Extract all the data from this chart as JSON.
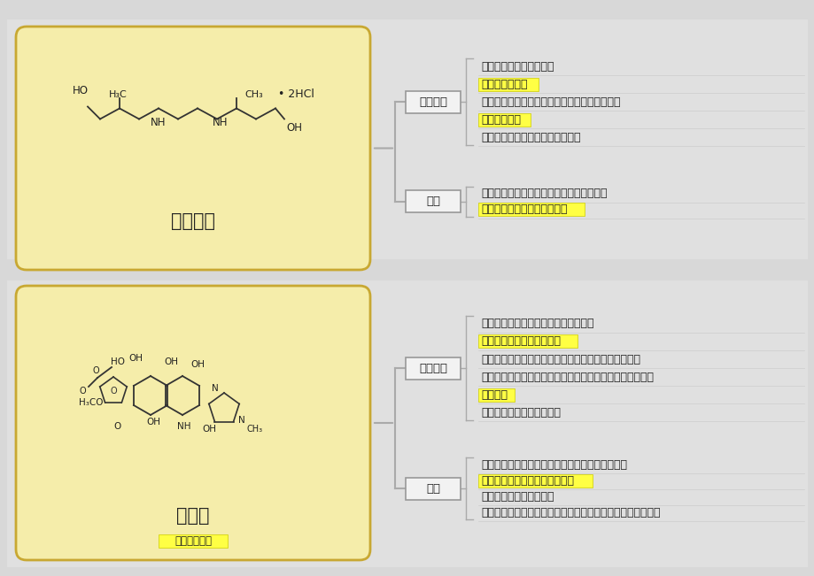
{
  "bg_color": "#d8d8d8",
  "panel_bg": "#f5edaa",
  "panel_border": "#c8a832",
  "box_bg": "#f2f2f2",
  "box_border": "#999999",
  "highlight_bg": "#ffff44",
  "highlight_border": "#cccc00",
  "line_color": "#aaaaaa",
  "text_color": "#222222",
  "white_bg": "#f8f8f8",
  "title1": "乙胺丁醇",
  "title2": "利福平",
  "subtitle2": "甲哌利福霉素",
  "label_ab": "抗菌作用",
  "label_use": "用途",
  "s1_ab_items": [
    {
      "text": "选择性抑制结核分枝杆菌",
      "highlight": false
    },
    {
      "text": "对其它细菌无效",
      "highlight": true
    },
    {
      "text": "对异烟肼或链霉素已产生耐药性的结核分枝杆菌",
      "highlight": false
    },
    {
      "text": "本药仍然有效",
      "highlight": true
    },
    {
      "text": "与其它抗结核药物间无交叉耐药性",
      "highlight": false
    }
  ],
  "s1_use_items": [
    {
      "text": "与异烟肼或利福平合用于各种结核病的治疗",
      "highlight": false
    },
    {
      "text": "增强疗效、延缓耐药性的产生",
      "highlight": true
    }
  ],
  "s2_ab_items": [
    {
      "text": "对结核分枝杆菌、麻风分枝杆菌作用强",
      "highlight": false
    },
    {
      "text": "对前者的作用与异烟肼相当",
      "highlight": true
    },
    {
      "text": "静止期、繁殖期、细胞内的结核分支杆菌均有杀菌作用",
      "highlight": false
    },
    {
      "text": "同时对多种格兰阳性、阴性菌、以及某些病毒、沙眼衣原体",
      "highlight": false
    },
    {
      "text": "也有作用",
      "highlight": true
    },
    {
      "text": "常与异烟肼、乙胺丁醇合用",
      "highlight": false
    }
  ],
  "s2_use_items": [
    {
      "text": "与其它抗结核药合用于肺结核病及其他部位结核病",
      "highlight": false
    },
    {
      "text": "既可以用于初治也可以用于复治",
      "highlight": true
    },
    {
      "text": "麻风病可与抗麻风药合用",
      "highlight": false
    },
    {
      "text": "耐药金葡菌及其它敏感细菌引起的感染，局部用药可治疗沙眼",
      "highlight": false
    }
  ],
  "figw": 9.2,
  "figh": 6.51,
  "dpi": 100
}
